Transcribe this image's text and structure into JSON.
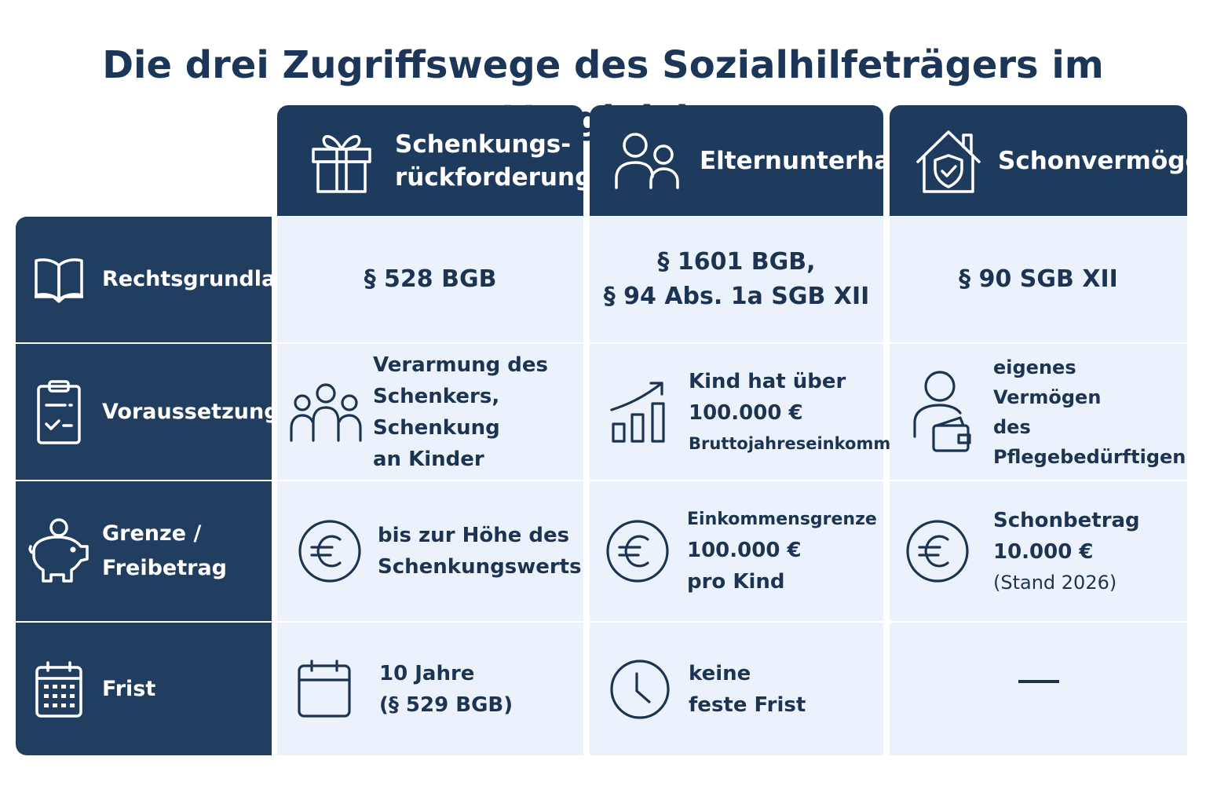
{
  "title": "Die drei Zugriffswege des Sozialhilfeträgers im Vergleich",
  "columns": [
    {
      "label": "Schenkungs-\nrückforderung",
      "icon": "gift-icon"
    },
    {
      "label": "Elternunterhalt",
      "icon": "people-icon"
    },
    {
      "label": "Schonvermögen",
      "icon": "house-shield-icon"
    }
  ],
  "rows": [
    {
      "label": "Rechtsgrundlage",
      "icon": "book-icon"
    },
    {
      "label": "Voraussetzung",
      "icon": "clipboard-icon"
    },
    {
      "label": "Grenze /\nFreibetrag",
      "icon": "piggy-bank-icon"
    },
    {
      "label": "Frist",
      "icon": "calendar-icon"
    }
  ],
  "cells": {
    "rechtsgrundlage": {
      "schenkung": "§ 528 BGB",
      "eltern": "§ 1601 BGB,\n§ 94 Abs. 1a SGB XII",
      "schon": "§ 90 SGB XII"
    },
    "voraussetzung": {
      "schenkung": "Verarmung des\nSchenkers, Schenkung\nan Kinder",
      "eltern_line1": "Kind hat über\n100.000 €",
      "eltern_line2": "Bruttojahreseinkommen",
      "schon": "eigenes Vermögen\ndes Pflegebedürftigen"
    },
    "grenze": {
      "schenkung": "bis zur Höhe des\nSchenkungswerts",
      "eltern_line1": "Einkommensgrenze",
      "eltern_line2": "100.000 €\npro Kind",
      "schon_line1": "Schonbetrag\n10.000 €",
      "schon_line2": "(Stand 2026)"
    },
    "frist": {
      "schenkung": "10 Jahre\n(§ 529 BGB)",
      "eltern": "keine\nfeste Frist"
    }
  },
  "colors": {
    "header_bg": "#1e3a5c",
    "row_header_bg": "#213e60",
    "cell_bg": "#ecf2fb",
    "text": "#1c3452"
  }
}
